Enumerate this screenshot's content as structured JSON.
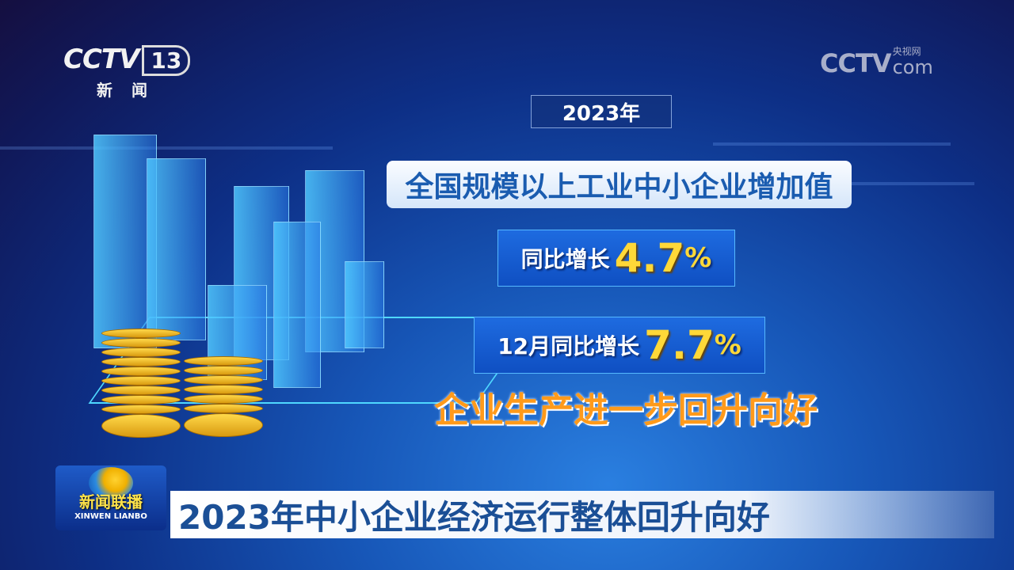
{
  "channel_logo": {
    "brand": "CCTV",
    "number": "13",
    "subtitle": "新闻"
  },
  "watermark": {
    "brand": "CCTV",
    "site": "央视网",
    "suffix": "com"
  },
  "graphic": {
    "year": "2023年",
    "title": "全国规模以上工业中小企业增加值",
    "stats": [
      {
        "label": "同比增长",
        "value": "4.7",
        "unit": "%"
      },
      {
        "label": "12月同比增长",
        "value": "7.7",
        "unit": "%"
      }
    ],
    "conclusion": "企业生产进一步回升向好"
  },
  "program_logo": {
    "name_cn": "新闻联播",
    "name_en": "XINWEN LIANBO"
  },
  "caption": "2023年中小企业经济运行整体回升向好",
  "colors": {
    "stat_value": "#ffd838",
    "conclusion": "#ff9a1a",
    "caption_text": "#1b4f96"
  }
}
